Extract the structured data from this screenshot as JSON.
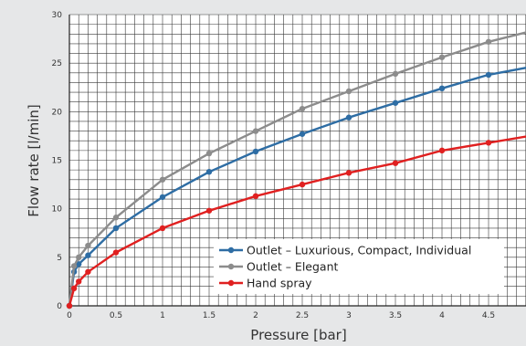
{
  "chart_data": {
    "type": "line",
    "title": "",
    "xlabel": "Pressure [bar]",
    "ylabel": "Flow rate [l/min]",
    "xlim": [
      0,
      5
    ],
    "ylim": [
      0,
      30
    ],
    "x_ticks": [
      0,
      0.5,
      1,
      1.5,
      2,
      2.5,
      3,
      3.5,
      4,
      4.5
    ],
    "y_ticks": [
      0,
      5,
      10,
      15,
      20,
      25,
      30
    ],
    "grid": true,
    "legend_position": "bottom-right",
    "series": [
      {
        "name": "Outlet – Luxurious, Compact, Individual",
        "color": "#2e6da4",
        "x": [
          0,
          0.05,
          0.1,
          0.2,
          0.5,
          1,
          1.5,
          2,
          2.5,
          3,
          3.5,
          4,
          4.5,
          5
        ],
        "y": [
          0,
          3.5,
          4.3,
          5.2,
          8.0,
          11.2,
          13.8,
          15.9,
          17.7,
          19.4,
          20.9,
          22.4,
          23.8,
          24.7
        ]
      },
      {
        "name": "Outlet – Elegant",
        "color": "#8c8c8c",
        "x": [
          0,
          0.05,
          0.1,
          0.2,
          0.5,
          1,
          1.5,
          2,
          2.5,
          3,
          3.5,
          4,
          4.5,
          5
        ],
        "y": [
          0,
          4.1,
          5.0,
          6.2,
          9.1,
          13.0,
          15.7,
          18.0,
          20.3,
          22.1,
          23.9,
          25.6,
          27.2,
          28.4
        ]
      },
      {
        "name": "Hand spray",
        "color": "#e02020",
        "x": [
          0,
          0.05,
          0.1,
          0.2,
          0.5,
          1,
          1.5,
          2,
          2.5,
          3,
          3.5,
          4,
          4.5,
          5
        ],
        "y": [
          0,
          1.8,
          2.5,
          3.5,
          5.5,
          8.0,
          9.8,
          11.3,
          12.5,
          13.7,
          14.7,
          16.0,
          16.8,
          17.6
        ]
      }
    ]
  }
}
